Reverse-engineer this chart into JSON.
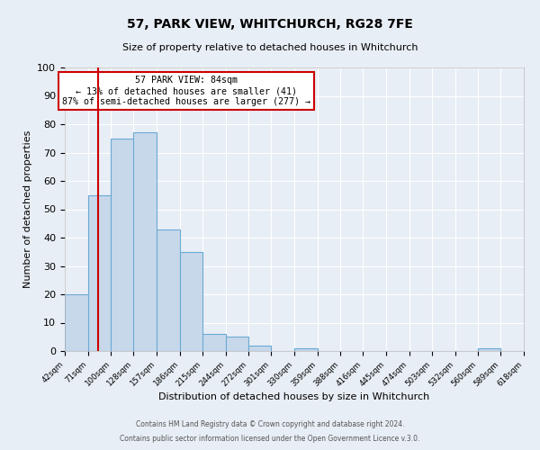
{
  "title": "57, PARK VIEW, WHITCHURCH, RG28 7FE",
  "subtitle": "Size of property relative to detached houses in Whitchurch",
  "xlabel": "Distribution of detached houses by size in Whitchurch",
  "ylabel": "Number of detached properties",
  "bin_edges": [
    42,
    71,
    100,
    128,
    157,
    186,
    215,
    244,
    272,
    301,
    330,
    359,
    388,
    416,
    445,
    474,
    503,
    532,
    560,
    589,
    618
  ],
  "bin_counts": [
    20,
    55,
    75,
    77,
    43,
    35,
    6,
    5,
    2,
    0,
    1,
    0,
    0,
    0,
    0,
    0,
    0,
    0,
    1,
    0
  ],
  "bar_color": "#c8d8eb",
  "bar_edge_color": "#6aaad4",
  "reference_line_x": 84,
  "reference_line_color": "#cc0000",
  "annotation_text": "57 PARK VIEW: 84sqm\n← 13% of detached houses are smaller (41)\n87% of semi-detached houses are larger (277) →",
  "annotation_box_color": "#ffffff",
  "annotation_box_edge": "#cc0000",
  "ylim": [
    0,
    100
  ],
  "background_color": "#e8eef5",
  "grid_color": "#ffffff",
  "footer_line1": "Contains HM Land Registry data © Crown copyright and database right 2024.",
  "footer_line2": "Contains public sector information licensed under the Open Government Licence v.3.0."
}
